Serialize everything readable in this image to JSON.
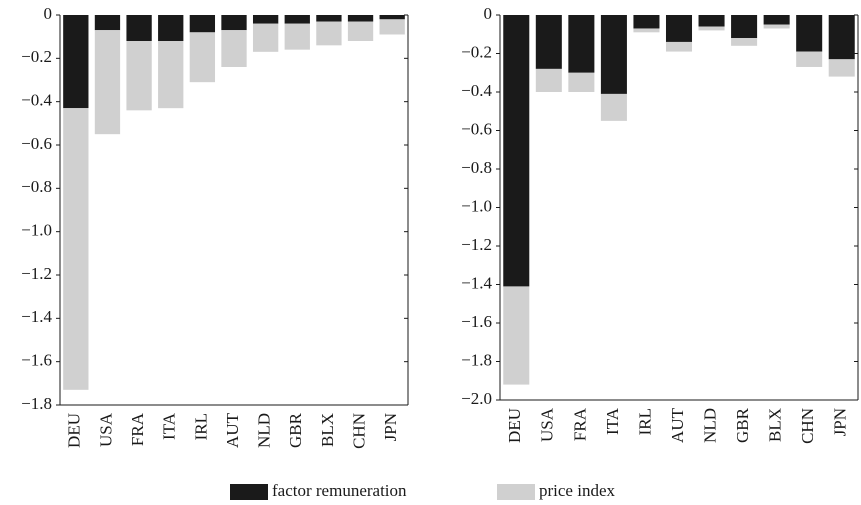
{
  "chart_data": [
    {
      "type": "bar",
      "stacked": true,
      "categories": [
        "DEU",
        "USA",
        "FRA",
        "ITA",
        "IRL",
        "AUT",
        "NLD",
        "GBR",
        "BLX",
        "CHN",
        "JPN"
      ],
      "series": [
        {
          "name": "factor remuneration",
          "color": "#1a1a1a",
          "values": [
            -0.43,
            -0.07,
            -0.12,
            -0.12,
            -0.08,
            -0.07,
            -0.04,
            -0.04,
            -0.03,
            -0.03,
            -0.02
          ]
        },
        {
          "name": "price index",
          "color": "#d0d0d0",
          "values": [
            -1.3,
            -0.48,
            -0.32,
            -0.31,
            -0.23,
            -0.17,
            -0.13,
            -0.12,
            -0.11,
            -0.09,
            -0.07
          ]
        }
      ],
      "ylim": [
        -1.8,
        0
      ],
      "yticks": [
        0,
        {
          "value": -0.2,
          "label": "−0.2"
        },
        {
          "value": -0.4,
          "label": "−0.4"
        },
        {
          "value": -0.6,
          "label": "−0.6"
        },
        {
          "value": -0.8,
          "label": "−0.8"
        },
        {
          "value": -1.0,
          "label": "−1.0"
        },
        {
          "value": -1.2,
          "label": "−1.2"
        },
        {
          "value": -1.4,
          "label": "−1.4"
        },
        {
          "value": -1.6,
          "label": "−1.6"
        },
        {
          "value": -1.8,
          "label": "−1.8"
        }
      ]
    },
    {
      "type": "bar",
      "stacked": true,
      "categories": [
        "DEU",
        "USA",
        "FRA",
        "ITA",
        "IRL",
        "AUT",
        "NLD",
        "GBR",
        "BLX",
        "CHN",
        "JPN"
      ],
      "series": [
        {
          "color": "#1a1a1a",
          "values": [
            -1.41,
            -0.28,
            -0.3,
            -0.41,
            -0.07,
            -0.14,
            -0.06,
            -0.12,
            -0.05,
            -0.19,
            -0.23
          ]
        },
        {
          "color": "#d0d0d0",
          "values": [
            -0.51,
            -0.12,
            -0.1,
            -0.14,
            -0.02,
            -0.05,
            -0.02,
            -0.04,
            -0.02,
            -0.08,
            -0.09
          ]
        }
      ],
      "ylim": [
        -2.0,
        0
      ],
      "yticks": [
        0,
        {
          "value": -0.2,
          "label": "−0.2"
        },
        {
          "value": -0.4,
          "label": "−0.4"
        },
        {
          "value": -0.6,
          "label": "−0.6"
        },
        {
          "value": -0.8,
          "label": "−0.8"
        },
        {
          "value": -1.0,
          "label": "−1.0"
        },
        {
          "value": -1.2,
          "label": "−1.2"
        },
        {
          "value": -1.4,
          "label": "−1.4"
        },
        {
          "value": -1.6,
          "label": "−1.6"
        },
        {
          "value": -1.8,
          "label": "−1.8"
        },
        {
          "value": -2.0,
          "label": "−2.0"
        }
      ]
    }
  ]
}
